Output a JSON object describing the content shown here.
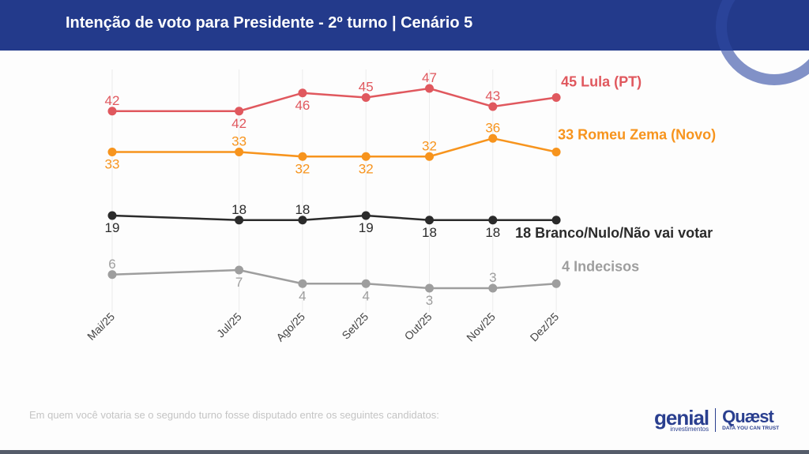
{
  "header": {
    "title": "Intenção de voto para Presidente - 2º turno | Cenário 5"
  },
  "footnote": "Em quem você votaria se o segundo turno fosse disputado entre os seguintes candidatos:",
  "logos": {
    "genial_main": "genial",
    "genial_sub": "investimentos",
    "quaest_main": "Quæst",
    "quaest_sub": "DATA YOU CAN TRUST"
  },
  "chart_data": {
    "type": "line",
    "categories": [
      "Mai/25",
      "Jul/25",
      "Ago/25",
      "Set/25",
      "Out/25",
      "Nov/25",
      "Dez/25"
    ],
    "ylim": [
      0,
      50
    ],
    "grid": "vertical",
    "series": [
      {
        "name": "Lula (PT)",
        "end_label": "45 Lula (PT)",
        "color": "#e0585e",
        "values": [
          42,
          42,
          46,
          45,
          47,
          43,
          45
        ],
        "label_pos": [
          "above",
          "below",
          "below",
          "above",
          "above",
          "above",
          ""
        ]
      },
      {
        "name": "Romeu Zema (Novo)",
        "end_label": "33 Romeu Zema (Novo)",
        "color": "#f7941d",
        "values": [
          33,
          33,
          32,
          32,
          32,
          36,
          33
        ],
        "label_pos": [
          "below",
          "above",
          "below",
          "below",
          "above",
          "above",
          ""
        ]
      },
      {
        "name": "Branco/Nulo/Não vai votar",
        "end_label": "18 Branco/Nulo/Não vai votar",
        "color": "#2b2b2b",
        "values": [
          19,
          18,
          18,
          19,
          18,
          18,
          18
        ],
        "label_pos": [
          "below",
          "above",
          "above",
          "below",
          "below",
          "below",
          ""
        ]
      },
      {
        "name": "Indecisos",
        "end_label": "4 Indecisos",
        "color": "#9e9e9e",
        "values": [
          6,
          7,
          4,
          4,
          3,
          3,
          4
        ],
        "label_pos": [
          "above",
          "below",
          "below",
          "below",
          "below",
          "above",
          ""
        ]
      }
    ]
  }
}
